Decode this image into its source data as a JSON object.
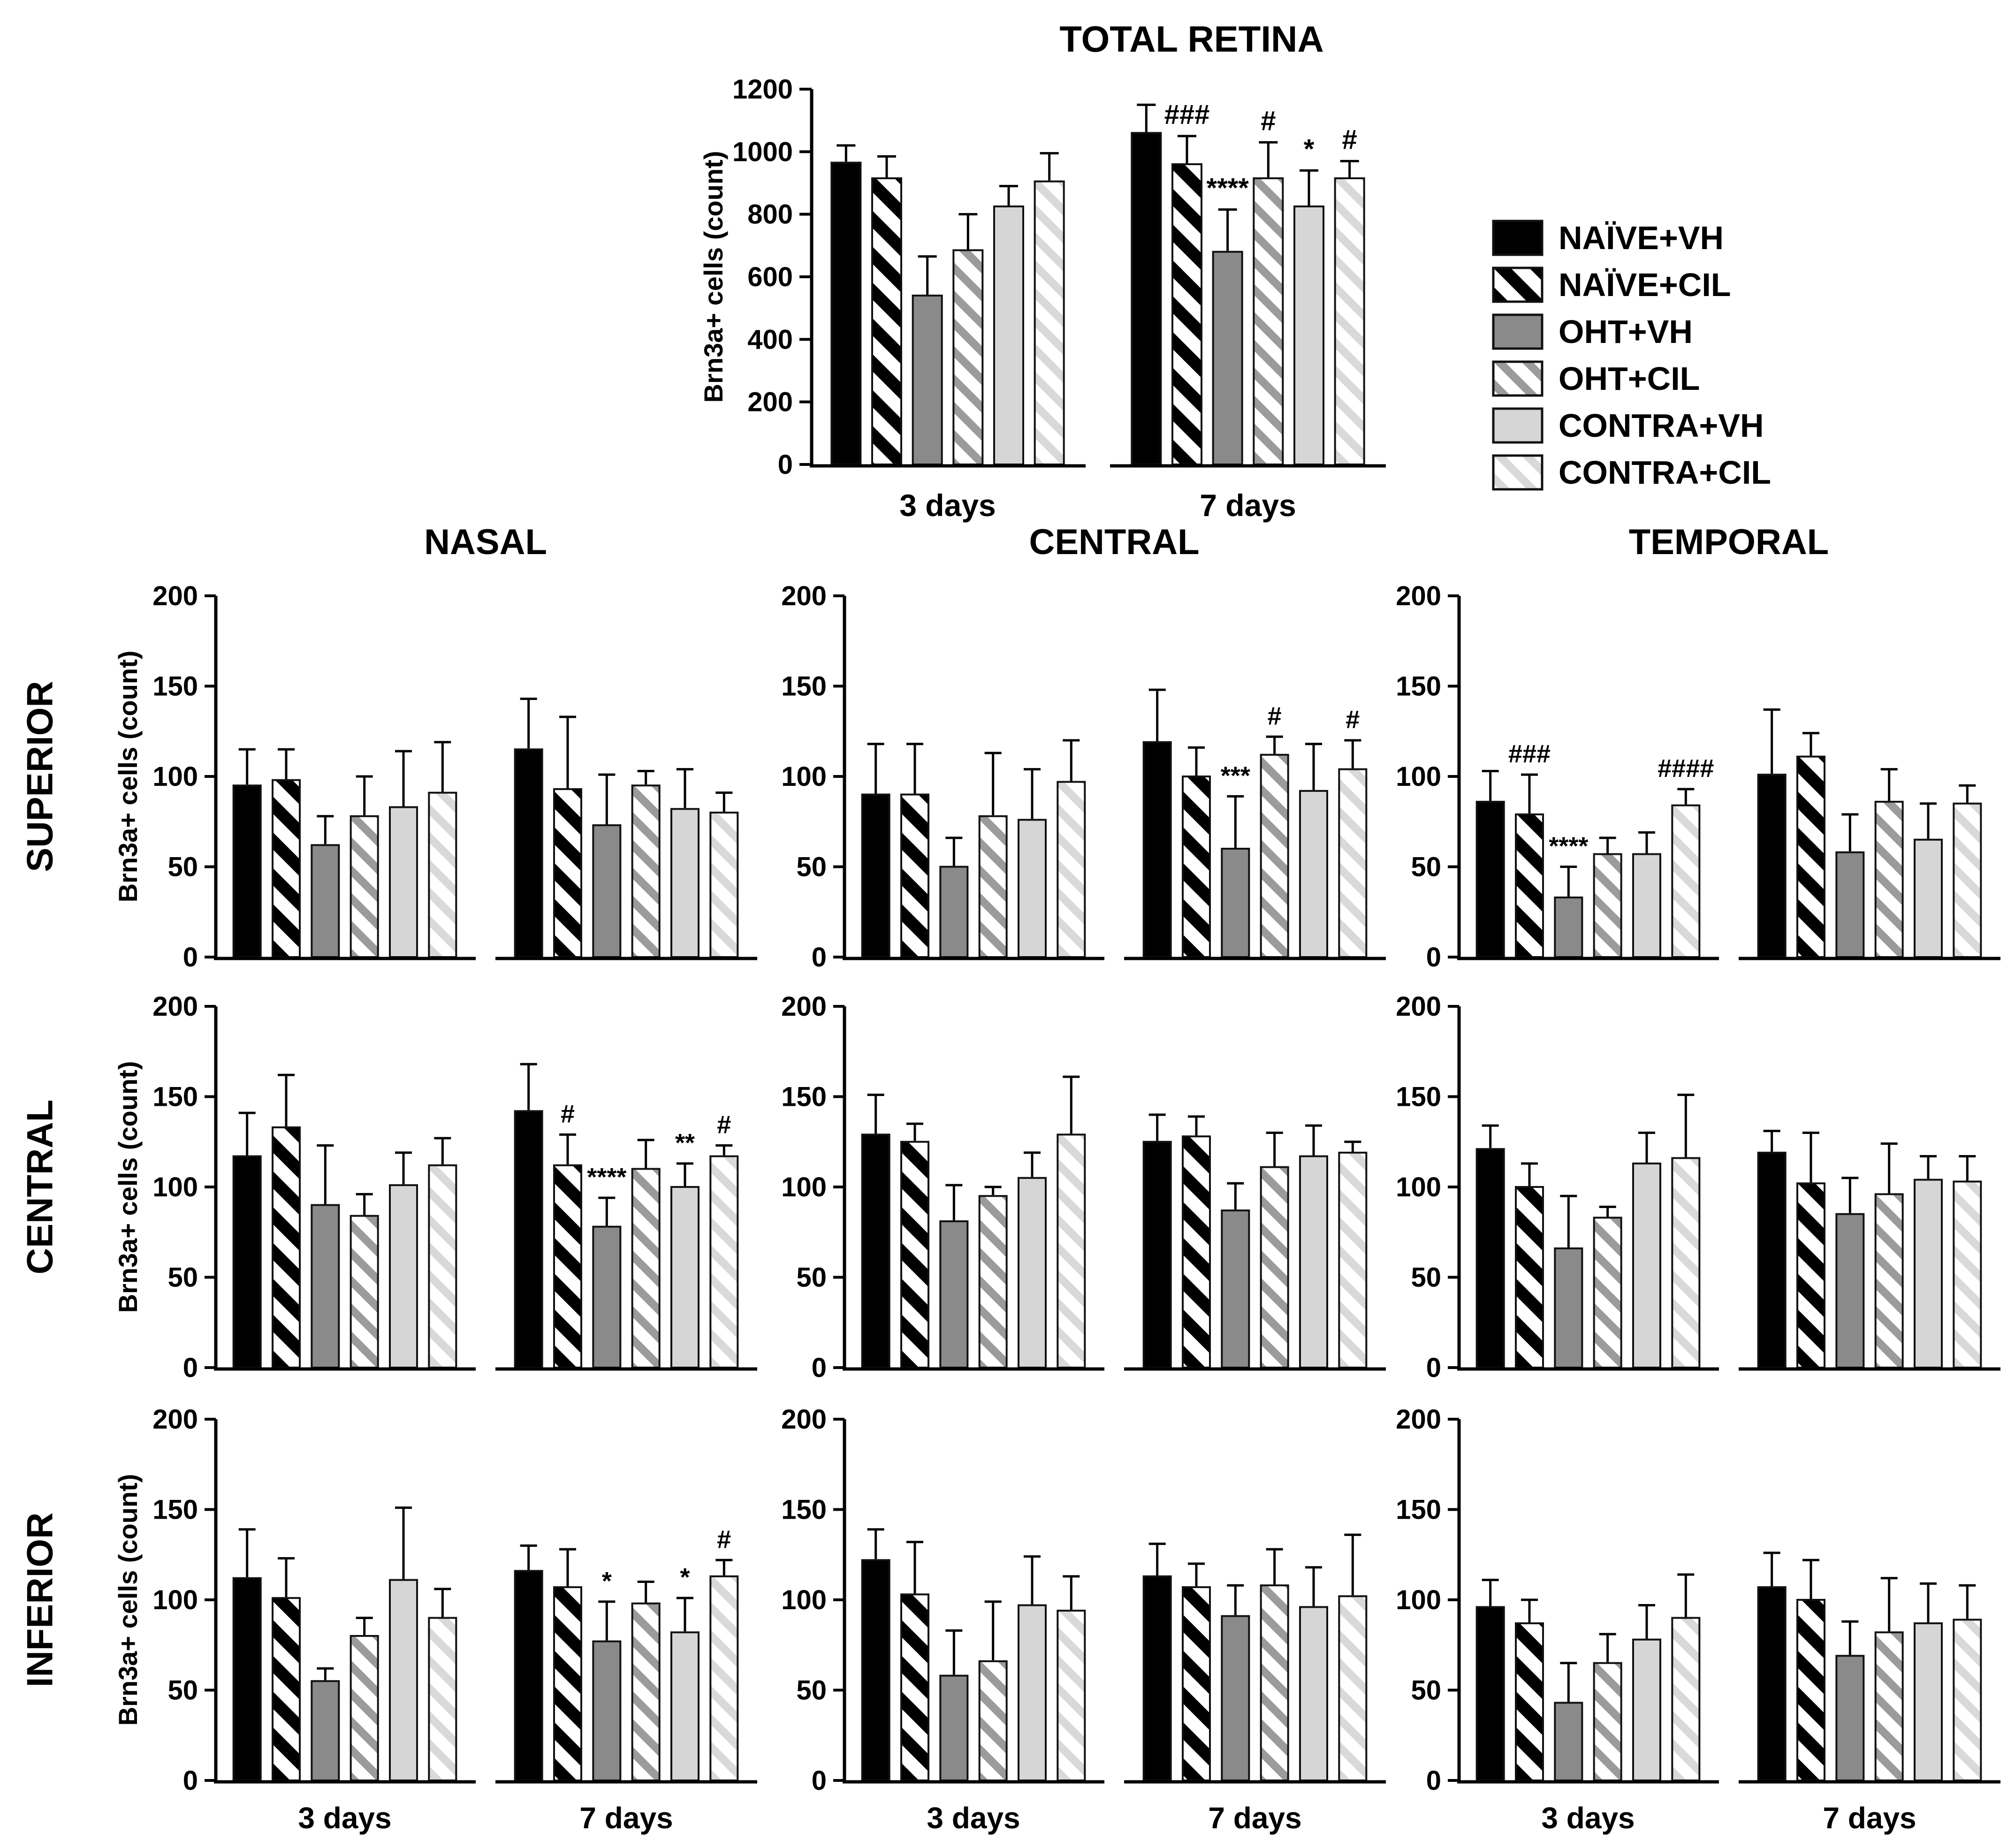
{
  "figure": {
    "column_labels": [
      "NASAL",
      "CENTRAL",
      "TEMPORAL"
    ],
    "row_labels": [
      "SUPERIOR",
      "CENTRAL",
      "INFERIOR"
    ],
    "y_axis_label": "Brn3a+ cells (count)",
    "legend": {
      "items": [
        {
          "label": "NAÏVE+VH",
          "pattern": "solid-black"
        },
        {
          "label": "NAÏVE+CIL",
          "pattern": "hatch-black"
        },
        {
          "label": "OHT+VH",
          "pattern": "solid-gray"
        },
        {
          "label": "OHT+CIL",
          "pattern": "hatch-gray"
        },
        {
          "label": "CONTRA+VH",
          "pattern": "solid-light"
        },
        {
          "label": "CONTRA+CIL",
          "pattern": "hatch-light"
        }
      ]
    },
    "palette": {
      "black": "#000000",
      "dark_gray": "#8a8a8a",
      "light_gray": "#d6d6d6",
      "hatch_gray_stripe": "#9b9b9b",
      "hatch_light_stripe": "#d9d9d9",
      "axis": "#000000",
      "background": "#ffffff"
    }
  },
  "chart_data": [
    {
      "id": "total",
      "type": "bar",
      "title": "TOTAL RETINA",
      "ylabel": "Brn3a+ cells (count)",
      "ylim": [
        0,
        1200
      ],
      "yticks": [
        0,
        200,
        400,
        600,
        800,
        1000,
        1200
      ],
      "categories": [
        "3 days",
        "7 days"
      ],
      "series_names": [
        "NAÏVE+VH",
        "NAÏVE+CIL",
        "OHT+VH",
        "OHT+CIL",
        "CONTRA+VH",
        "CONTRA+CIL"
      ],
      "error_style": "upper-only",
      "show_ylabel": true,
      "show_x_labels": true,
      "groups": [
        {
          "label": "3 days",
          "values": [
            965,
            915,
            540,
            685,
            825,
            905
          ],
          "errors": [
            55,
            70,
            125,
            115,
            65,
            90
          ]
        },
        {
          "label": "7 days",
          "values": [
            1060,
            960,
            680,
            915,
            825,
            915
          ],
          "errors": [
            90,
            90,
            135,
            115,
            115,
            55
          ],
          "annotations": [
            "",
            "###",
            "****",
            "#",
            "*",
            "#"
          ]
        }
      ]
    },
    {
      "id": "superior_nasal",
      "type": "bar",
      "quadrant": "SUPERIOR",
      "region": "NASAL",
      "ylabel": "Brn3a+ cells (count)",
      "ylim": [
        0,
        200
      ],
      "yticks": [
        0,
        50,
        100,
        150,
        200
      ],
      "categories": [
        "3 days",
        "7 days"
      ],
      "error_style": "upper-only",
      "show_ylabel": true,
      "show_x_labels": false,
      "groups": [
        {
          "label": "3 days",
          "values": [
            95,
            98,
            62,
            78,
            83,
            91
          ],
          "errors": [
            20,
            17,
            16,
            22,
            31,
            28
          ]
        },
        {
          "label": "7 days",
          "values": [
            115,
            93,
            73,
            95,
            82,
            80
          ],
          "errors": [
            28,
            40,
            28,
            8,
            22,
            11
          ]
        }
      ]
    },
    {
      "id": "superior_central",
      "type": "bar",
      "quadrant": "SUPERIOR",
      "region": "CENTRAL",
      "ylabel": "Brn3a+ cells (count)",
      "ylim": [
        0,
        200
      ],
      "yticks": [
        0,
        50,
        100,
        150,
        200
      ],
      "categories": [
        "3 days",
        "7 days"
      ],
      "error_style": "upper-only",
      "show_ylabel": false,
      "show_x_labels": false,
      "groups": [
        {
          "label": "3 days",
          "values": [
            90,
            90,
            50,
            78,
            76,
            97
          ],
          "errors": [
            28,
            28,
            16,
            35,
            28,
            23
          ]
        },
        {
          "label": "7 days",
          "values": [
            119,
            100,
            60,
            112,
            92,
            104
          ],
          "errors": [
            29,
            16,
            29,
            10,
            26,
            16
          ],
          "annotations": [
            "",
            "",
            "***",
            "#",
            "",
            "#"
          ]
        }
      ]
    },
    {
      "id": "superior_temporal",
      "type": "bar",
      "quadrant": "SUPERIOR",
      "region": "TEMPORAL",
      "ylabel": "Brn3a+ cells (count)",
      "ylim": [
        0,
        200
      ],
      "yticks": [
        0,
        50,
        100,
        150,
        200
      ],
      "categories": [
        "3 days",
        "7 days"
      ],
      "error_style": "upper-only",
      "show_ylabel": false,
      "show_x_labels": false,
      "groups": [
        {
          "label": "3 days",
          "values": [
            86,
            79,
            33,
            57,
            57,
            84
          ],
          "errors": [
            17,
            22,
            17,
            9,
            12,
            9
          ],
          "annotations": [
            "",
            "###",
            "****",
            "",
            "",
            "####"
          ]
        },
        {
          "label": "7 days",
          "values": [
            101,
            111,
            58,
            86,
            65,
            85
          ],
          "errors": [
            36,
            13,
            21,
            18,
            20,
            10
          ]
        }
      ]
    },
    {
      "id": "central_nasal",
      "type": "bar",
      "quadrant": "CENTRAL",
      "region": "NASAL",
      "ylabel": "Brn3a+ cells (count)",
      "ylim": [
        0,
        200
      ],
      "yticks": [
        0,
        50,
        100,
        150,
        200
      ],
      "categories": [
        "3 days",
        "7 days"
      ],
      "error_style": "upper-only",
      "show_ylabel": true,
      "show_x_labels": false,
      "groups": [
        {
          "label": "3 days",
          "values": [
            117,
            133,
            90,
            84,
            101,
            112
          ],
          "errors": [
            24,
            29,
            33,
            12,
            18,
            15
          ]
        },
        {
          "label": "7 days",
          "values": [
            142,
            112,
            78,
            110,
            100,
            117
          ],
          "errors": [
            26,
            17,
            16,
            16,
            13,
            6
          ],
          "annotations": [
            "",
            "#",
            "****",
            "",
            "**",
            "#"
          ]
        }
      ]
    },
    {
      "id": "central_central",
      "type": "bar",
      "quadrant": "CENTRAL",
      "region": "CENTRAL",
      "ylabel": "Brn3a+ cells (count)",
      "ylim": [
        0,
        200
      ],
      "yticks": [
        0,
        50,
        100,
        150,
        200
      ],
      "categories": [
        "3 days",
        "7 days"
      ],
      "error_style": "upper-only",
      "show_ylabel": false,
      "show_x_labels": false,
      "groups": [
        {
          "label": "3 days",
          "values": [
            129,
            125,
            81,
            95,
            105,
            129
          ],
          "errors": [
            22,
            10,
            20,
            5,
            14,
            32
          ]
        },
        {
          "label": "7 days",
          "values": [
            125,
            128,
            87,
            111,
            117,
            119
          ],
          "errors": [
            15,
            11,
            15,
            19,
            17,
            6
          ]
        }
      ]
    },
    {
      "id": "central_temporal",
      "type": "bar",
      "quadrant": "CENTRAL",
      "region": "TEMPORAL",
      "ylabel": "Brn3a+ cells (count)",
      "ylim": [
        0,
        200
      ],
      "yticks": [
        0,
        50,
        100,
        150,
        200
      ],
      "categories": [
        "3 days",
        "7 days"
      ],
      "error_style": "upper-only",
      "show_ylabel": false,
      "show_x_labels": false,
      "groups": [
        {
          "label": "3 days",
          "values": [
            121,
            100,
            66,
            83,
            113,
            116
          ],
          "errors": [
            13,
            13,
            29,
            6,
            17,
            35
          ]
        },
        {
          "label": "7 days",
          "values": [
            119,
            102,
            85,
            96,
            104,
            103
          ],
          "errors": [
            12,
            28,
            20,
            28,
            13,
            14
          ]
        }
      ]
    },
    {
      "id": "inferior_nasal",
      "type": "bar",
      "quadrant": "INFERIOR",
      "region": "NASAL",
      "ylabel": "Brn3a+ cells (count)",
      "ylim": [
        0,
        200
      ],
      "yticks": [
        0,
        50,
        100,
        150,
        200
      ],
      "categories": [
        "3 days",
        "7 days"
      ],
      "error_style": "upper-only",
      "show_ylabel": true,
      "show_x_labels": true,
      "groups": [
        {
          "label": "3 days",
          "values": [
            112,
            101,
            55,
            80,
            111,
            90
          ],
          "errors": [
            27,
            22,
            7,
            10,
            40,
            16
          ]
        },
        {
          "label": "7 days",
          "values": [
            116,
            107,
            77,
            98,
            82,
            113
          ],
          "errors": [
            14,
            21,
            22,
            12,
            19,
            9
          ],
          "annotations": [
            "",
            "",
            "*",
            "",
            "*",
            "#"
          ]
        }
      ]
    },
    {
      "id": "inferior_central",
      "type": "bar",
      "quadrant": "INFERIOR",
      "region": "CENTRAL",
      "ylabel": "Brn3a+ cells (count)",
      "ylim": [
        0,
        200
      ],
      "yticks": [
        0,
        50,
        100,
        150,
        200
      ],
      "categories": [
        "3 days",
        "7 days"
      ],
      "error_style": "upper-only",
      "show_ylabel": false,
      "show_x_labels": true,
      "groups": [
        {
          "label": "3 days",
          "values": [
            122,
            103,
            58,
            66,
            97,
            94
          ],
          "errors": [
            17,
            29,
            25,
            33,
            27,
            19
          ]
        },
        {
          "label": "7 days",
          "values": [
            113,
            107,
            91,
            108,
            96,
            102
          ],
          "errors": [
            18,
            13,
            17,
            20,
            22,
            34
          ]
        }
      ]
    },
    {
      "id": "inferior_temporal",
      "type": "bar",
      "quadrant": "INFERIOR",
      "region": "TEMPORAL",
      "ylabel": "Brn3a+ cells (count)",
      "ylim": [
        0,
        200
      ],
      "yticks": [
        0,
        50,
        100,
        150,
        200
      ],
      "categories": [
        "3 days",
        "7 days"
      ],
      "error_style": "upper-only",
      "show_ylabel": false,
      "show_x_labels": true,
      "groups": [
        {
          "label": "3 days",
          "values": [
            96,
            87,
            43,
            65,
            78,
            90
          ],
          "errors": [
            15,
            13,
            22,
            16,
            19,
            24
          ]
        },
        {
          "label": "7 days",
          "values": [
            107,
            100,
            69,
            82,
            87,
            89
          ],
          "errors": [
            19,
            22,
            19,
            30,
            22,
            19
          ]
        }
      ]
    }
  ]
}
